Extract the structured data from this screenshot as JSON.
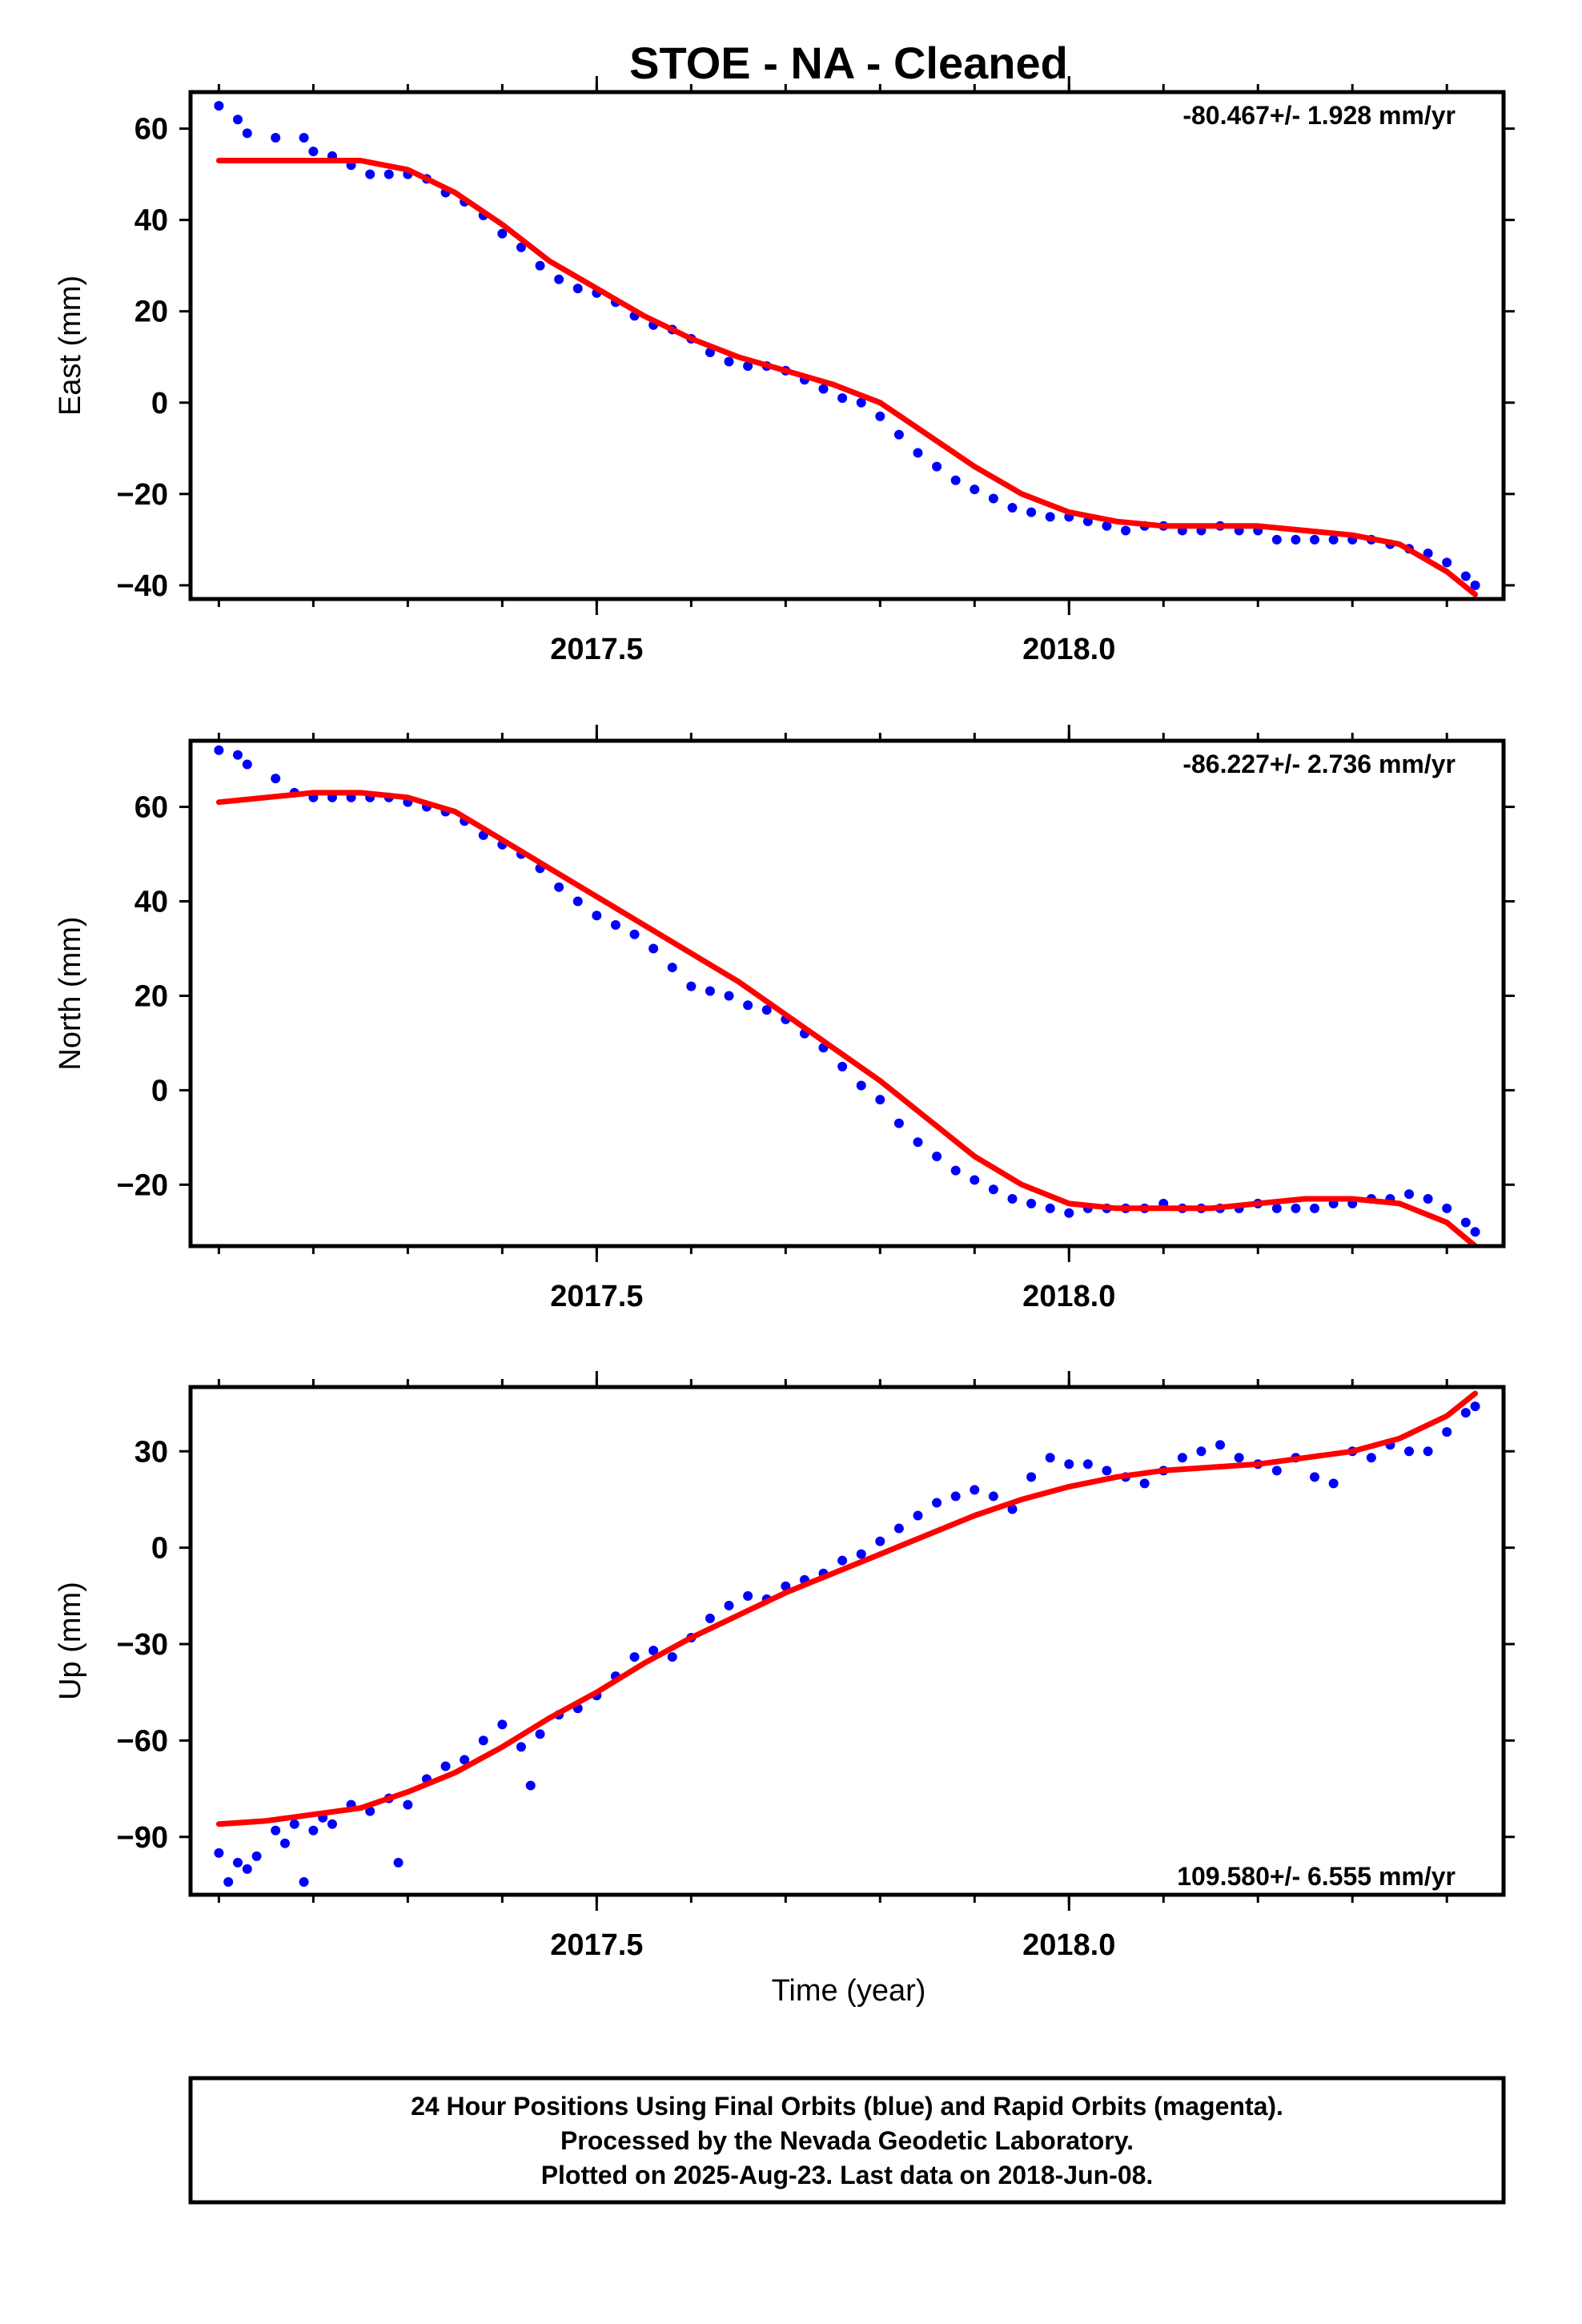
{
  "title": "STOE  - NA - Cleaned",
  "xlabel": "Time (year)",
  "footer": [
    "24 Hour Positions Using Final Orbits (blue) and Rapid Orbits (magenta).",
    "Processed by the Nevada Geodetic Laboratory.",
    "Plotted on 2025-Aug-23. Last data on 2018-Jun-08."
  ],
  "colors": {
    "points": "#0000ff",
    "fit": "#ff0000",
    "frame": "#000000"
  },
  "chart_data": [
    {
      "type": "scatter",
      "title": "STOE  - NA - Cleaned",
      "ylabel": "East (mm)",
      "rate_text": "-80.467+/- 1.928 mm/yr",
      "rate_position": "top-right",
      "xlim": [
        2017.07,
        2018.46
      ],
      "ylim": [
        -43,
        68
      ],
      "xticks": [
        2017.5,
        2018.0
      ],
      "xtick_labels": [
        "2017.5",
        "2018.0"
      ],
      "yticks": [
        -40,
        -20,
        0,
        20,
        40,
        60
      ],
      "ytick_labels": [
        "−40",
        "−20",
        "0",
        "20",
        "40",
        "60"
      ],
      "grid": false,
      "series": [
        {
          "role": "points",
          "x": [
            2017.1,
            2017.12,
            2017.13,
            2017.16,
            2017.19,
            2017.2,
            2017.22,
            2017.24,
            2017.26,
            2017.28,
            2017.3,
            2017.32,
            2017.34,
            2017.36,
            2017.38,
            2017.4,
            2017.42,
            2017.44,
            2017.46,
            2017.48,
            2017.5,
            2017.52,
            2017.54,
            2017.56,
            2017.58,
            2017.6,
            2017.62,
            2017.64,
            2017.66,
            2017.68,
            2017.7,
            2017.72,
            2017.74,
            2017.76,
            2017.78,
            2017.8,
            2017.82,
            2017.84,
            2017.86,
            2017.88,
            2017.9,
            2017.92,
            2017.94,
            2017.96,
            2017.98,
            2018.0,
            2018.02,
            2018.04,
            2018.06,
            2018.08,
            2018.1,
            2018.12,
            2018.14,
            2018.16,
            2018.18,
            2018.2,
            2018.22,
            2018.24,
            2018.26,
            2018.28,
            2018.3,
            2018.32,
            2018.34,
            2018.36,
            2018.38,
            2018.4,
            2018.42,
            2018.43
          ],
          "y": [
            65,
            62,
            59,
            58,
            58,
            55,
            54,
            52,
            50,
            50,
            50,
            49,
            46,
            44,
            41,
            37,
            34,
            30,
            27,
            25,
            24,
            22,
            19,
            17,
            16,
            14,
            11,
            9,
            8,
            8,
            7,
            5,
            3,
            1,
            0,
            -3,
            -7,
            -11,
            -14,
            -17,
            -19,
            -21,
            -23,
            -24,
            -25,
            -25,
            -26,
            -27,
            -28,
            -27,
            -27,
            -28,
            -28,
            -27,
            -28,
            -28,
            -30,
            -30,
            -30,
            -30,
            -30,
            -30,
            -31,
            -32,
            -33,
            -35,
            -38,
            -40
          ]
        },
        {
          "role": "fit",
          "x": [
            2017.1,
            2017.15,
            2017.2,
            2017.25,
            2017.3,
            2017.35,
            2017.4,
            2017.45,
            2017.5,
            2017.55,
            2017.6,
            2017.65,
            2017.7,
            2017.75,
            2017.8,
            2017.85,
            2017.9,
            2017.95,
            2018.0,
            2018.05,
            2018.1,
            2018.15,
            2018.2,
            2018.25,
            2018.3,
            2018.35,
            2018.4,
            2018.43
          ],
          "y": [
            53,
            53,
            53,
            53,
            51,
            46,
            39,
            31,
            25,
            19,
            14,
            10,
            7,
            4,
            0,
            -7,
            -14,
            -20,
            -24,
            -26,
            -27,
            -27,
            -27,
            -28,
            -29,
            -31,
            -37,
            -42
          ]
        }
      ]
    },
    {
      "type": "scatter",
      "ylabel": "North (mm)",
      "rate_text": "-86.227+/- 2.736 mm/yr",
      "rate_position": "top-right",
      "xlim": [
        2017.07,
        2018.46
      ],
      "ylim": [
        -33,
        74
      ],
      "xticks": [
        2017.5,
        2018.0
      ],
      "xtick_labels": [
        "2017.5",
        "2018.0"
      ],
      "yticks": [
        -20,
        0,
        20,
        40,
        60
      ],
      "ytick_labels": [
        "−20",
        "0",
        "20",
        "40",
        "60"
      ],
      "grid": false,
      "series": [
        {
          "role": "points",
          "x": [
            2017.1,
            2017.12,
            2017.13,
            2017.16,
            2017.18,
            2017.2,
            2017.22,
            2017.24,
            2017.26,
            2017.28,
            2017.3,
            2017.32,
            2017.34,
            2017.36,
            2017.38,
            2017.4,
            2017.42,
            2017.44,
            2017.46,
            2017.48,
            2017.5,
            2017.52,
            2017.54,
            2017.56,
            2017.58,
            2017.6,
            2017.62,
            2017.64,
            2017.66,
            2017.68,
            2017.7,
            2017.72,
            2017.74,
            2017.76,
            2017.78,
            2017.8,
            2017.82,
            2017.84,
            2017.86,
            2017.88,
            2017.9,
            2017.92,
            2017.94,
            2017.96,
            2017.98,
            2018.0,
            2018.02,
            2018.04,
            2018.06,
            2018.08,
            2018.1,
            2018.12,
            2018.14,
            2018.16,
            2018.18,
            2018.2,
            2018.22,
            2018.24,
            2018.26,
            2018.28,
            2018.3,
            2018.32,
            2018.34,
            2018.36,
            2018.38,
            2018.4,
            2018.42,
            2018.43
          ],
          "y": [
            72,
            71,
            69,
            66,
            63,
            62,
            62,
            62,
            62,
            62,
            61,
            60,
            59,
            57,
            54,
            52,
            50,
            47,
            43,
            40,
            37,
            35,
            33,
            30,
            26,
            22,
            21,
            20,
            18,
            17,
            15,
            12,
            9,
            5,
            1,
            -2,
            -7,
            -11,
            -14,
            -17,
            -19,
            -21,
            -23,
            -24,
            -25,
            -26,
            -25,
            -25,
            -25,
            -25,
            -24,
            -25,
            -25,
            -25,
            -25,
            -24,
            -25,
            -25,
            -25,
            -24,
            -24,
            -23,
            -23,
            -22,
            -23,
            -25,
            -28,
            -30
          ]
        },
        {
          "role": "fit",
          "x": [
            2017.1,
            2017.15,
            2017.2,
            2017.25,
            2017.3,
            2017.35,
            2017.4,
            2017.45,
            2017.5,
            2017.55,
            2017.6,
            2017.65,
            2017.7,
            2017.75,
            2017.8,
            2017.85,
            2017.9,
            2017.95,
            2018.0,
            2018.05,
            2018.1,
            2018.15,
            2018.2,
            2018.25,
            2018.3,
            2018.35,
            2018.4,
            2018.43
          ],
          "y": [
            61,
            62,
            63,
            63,
            62,
            59,
            53,
            47,
            41,
            35,
            29,
            23,
            16,
            9,
            2,
            -6,
            -14,
            -20,
            -24,
            -25,
            -25,
            -25,
            -24,
            -23,
            -23,
            -24,
            -28,
            -33
          ]
        }
      ]
    },
    {
      "type": "scatter",
      "ylabel": "Up (mm)",
      "rate_text": "109.580+/- 6.555 mm/yr",
      "rate_position": "bottom-right",
      "xlim": [
        2017.07,
        2018.46
      ],
      "ylim": [
        -108,
        50
      ],
      "xticks": [
        2017.5,
        2018.0
      ],
      "xtick_labels": [
        "2017.5",
        "2018.0"
      ],
      "yticks": [
        -90,
        -60,
        -30,
        0,
        30
      ],
      "ytick_labels": [
        "−90",
        "−60",
        "−30",
        "0",
        "30"
      ],
      "grid": false,
      "series": [
        {
          "role": "points",
          "x": [
            2017.1,
            2017.11,
            2017.12,
            2017.13,
            2017.14,
            2017.16,
            2017.17,
            2017.18,
            2017.19,
            2017.2,
            2017.21,
            2017.22,
            2017.24,
            2017.26,
            2017.28,
            2017.29,
            2017.3,
            2017.32,
            2017.34,
            2017.36,
            2017.38,
            2017.4,
            2017.42,
            2017.43,
            2017.44,
            2017.46,
            2017.48,
            2017.5,
            2017.52,
            2017.54,
            2017.56,
            2017.58,
            2017.6,
            2017.62,
            2017.64,
            2017.66,
            2017.68,
            2017.7,
            2017.72,
            2017.74,
            2017.76,
            2017.78,
            2017.8,
            2017.82,
            2017.84,
            2017.86,
            2017.88,
            2017.9,
            2017.92,
            2017.94,
            2017.96,
            2017.98,
            2018.0,
            2018.02,
            2018.04,
            2018.06,
            2018.08,
            2018.1,
            2018.12,
            2018.14,
            2018.16,
            2018.18,
            2018.2,
            2018.22,
            2018.24,
            2018.26,
            2018.28,
            2018.3,
            2018.32,
            2018.34,
            2018.36,
            2018.38,
            2018.4,
            2018.42,
            2018.43
          ],
          "y": [
            -95,
            -104,
            -98,
            -100,
            -96,
            -88,
            -92,
            -86,
            -104,
            -88,
            -84,
            -86,
            -80,
            -82,
            -78,
            -98,
            -80,
            -72,
            -68,
            -66,
            -60,
            -55,
            -62,
            -74,
            -58,
            -52,
            -50,
            -46,
            -40,
            -34,
            -32,
            -34,
            -28,
            -22,
            -18,
            -15,
            -16,
            -12,
            -10,
            -8,
            -4,
            -2,
            2,
            6,
            10,
            14,
            16,
            18,
            16,
            12,
            22,
            28,
            26,
            26,
            24,
            22,
            20,
            24,
            28,
            30,
            32,
            28,
            26,
            24,
            28,
            22,
            20,
            30,
            28,
            32,
            30,
            30,
            36,
            42,
            44
          ]
        },
        {
          "role": "fit",
          "x": [
            2017.1,
            2017.15,
            2017.2,
            2017.25,
            2017.3,
            2017.35,
            2017.4,
            2017.45,
            2017.5,
            2017.55,
            2017.6,
            2017.65,
            2017.7,
            2017.75,
            2017.8,
            2017.85,
            2017.9,
            2017.95,
            2018.0,
            2018.05,
            2018.1,
            2018.15,
            2018.2,
            2018.25,
            2018.3,
            2018.35,
            2018.4,
            2018.43
          ],
          "y": [
            -86,
            -85,
            -83,
            -81,
            -76,
            -70,
            -62,
            -53,
            -45,
            -36,
            -28,
            -21,
            -14,
            -8,
            -2,
            4,
            10,
            15,
            19,
            22,
            24,
            25,
            26,
            28,
            30,
            34,
            41,
            48
          ]
        }
      ]
    }
  ]
}
